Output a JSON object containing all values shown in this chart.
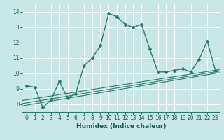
{
  "title": "",
  "xlabel": "Humidex (Indice chaleur)",
  "bg_color": "#c8e8e8",
  "grid_color": "#ffffff",
  "line_color": "#2a7a6a",
  "xlim": [
    -0.5,
    23.5
  ],
  "ylim": [
    7.5,
    14.5
  ],
  "xticks": [
    0,
    1,
    2,
    3,
    4,
    5,
    6,
    7,
    8,
    9,
    10,
    11,
    12,
    13,
    14,
    15,
    16,
    17,
    18,
    19,
    20,
    21,
    22,
    23
  ],
  "yticks": [
    8,
    9,
    10,
    11,
    12,
    13,
    14
  ],
  "main_series_x": [
    0,
    1,
    2,
    3,
    4,
    5,
    6,
    7,
    8,
    9,
    10,
    11,
    12,
    13,
    14,
    15,
    16,
    17,
    18,
    19,
    20,
    21,
    22,
    23
  ],
  "main_series_y": [
    9.2,
    9.1,
    7.8,
    8.3,
    9.5,
    8.4,
    8.7,
    10.5,
    11.0,
    11.8,
    13.9,
    13.7,
    13.2,
    13.0,
    13.2,
    11.6,
    10.1,
    10.1,
    10.2,
    10.3,
    10.1,
    10.9,
    12.1,
    10.2
  ],
  "line1_y": [
    7.9,
    10.05
  ],
  "line2_y": [
    8.05,
    10.15
  ],
  "line3_y": [
    8.25,
    10.25
  ]
}
